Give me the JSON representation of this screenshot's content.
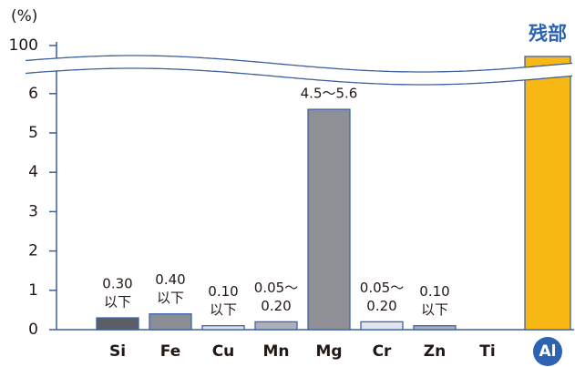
{
  "chart_data": {
    "type": "bar",
    "y_label": "(%)",
    "categories": [
      "Si",
      "Fe",
      "Cu",
      "Mn",
      "Mg",
      "Cr",
      "Zn",
      "Ti",
      "Al"
    ],
    "values": [
      0.3,
      0.4,
      0.1,
      0.2,
      5.6,
      0.2,
      0.1,
      null,
      98
    ],
    "value_labels": [
      [
        "0.30",
        "以下"
      ],
      [
        "0.40",
        "以下"
      ],
      [
        "0.10",
        "以下"
      ],
      [
        "0.05～",
        "0.20"
      ],
      [
        "4.5～5.6"
      ],
      [
        "0.05～",
        "0.20"
      ],
      [
        "0.10",
        "以下"
      ],
      null,
      [
        "残部"
      ]
    ],
    "colors": [
      "#5b5e66",
      "#8b8e95",
      "#dde2ec",
      "#abafbd",
      "#8f9095",
      "#dfe4ef",
      "#abafbd",
      null,
      "#f8b814"
    ],
    "ylim": [
      0,
      100
    ],
    "axis_break": [
      6.6,
      97
    ],
    "yticks": [
      0,
      1,
      2,
      3,
      4,
      5,
      6,
      100
    ]
  }
}
